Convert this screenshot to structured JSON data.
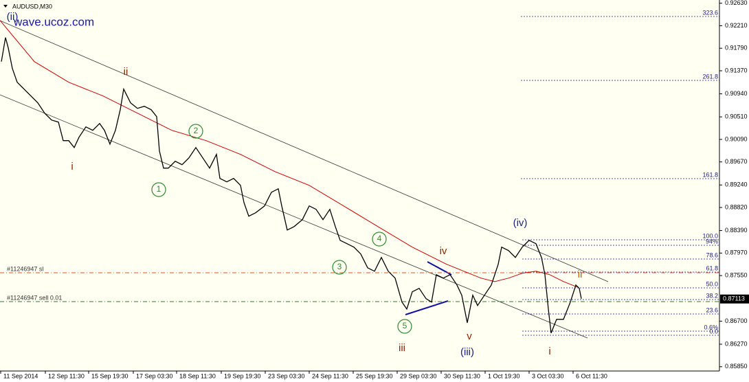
{
  "chart_data": {
    "type": "line",
    "title": "AUDUSD,M30",
    "watermark": "wave.ucoz.com",
    "x": [
      1,
      4,
      6,
      9,
      12.5,
      17.5,
      22.5,
      27.5,
      32.5,
      37.5,
      42.5,
      46,
      50,
      54,
      57.5,
      62.5,
      67.5,
      72.5,
      76,
      80,
      84,
      87.5,
      90,
      95,
      100,
      105,
      110,
      114,
      116,
      119,
      122.5,
      127.5,
      132.5,
      137.5,
      142.5,
      147.5,
      152.5,
      157.5,
      160,
      165,
      170,
      175,
      177.5,
      181,
      186,
      192.5,
      197.5,
      202.5,
      205,
      209,
      214,
      220,
      225,
      230,
      235,
      240,
      244,
      247.5,
      252.5,
      257.5,
      262.5,
      267.5,
      272.5,
      277.5,
      282.5,
      287.5,
      292.5,
      296,
      300,
      305,
      310,
      314,
      317.5,
      322.5,
      327.5,
      332.5,
      336,
      340,
      344,
      347.5,
      352.5,
      357.5,
      362.5,
      365,
      370,
      375,
      380,
      385,
      390,
      394,
      396.5,
      399,
      401,
      405,
      410,
      415,
      419,
      421.5,
      423
    ],
    "series": [
      {
        "name": "AUDUSD",
        "color": "#000000",
        "values": [
          0.9154,
          0.91989,
          0.91797,
          0.91412,
          0.91156,
          0.91028,
          0.909,
          0.90771,
          0.90579,
          0.90451,
          0.90413,
          0.90067,
          0.90067,
          0.89938,
          0.90131,
          0.90323,
          0.90259,
          0.90387,
          0.90259,
          0.90002,
          0.90259,
          0.90643,
          0.91028,
          0.90771,
          0.90669,
          0.90707,
          0.90643,
          0.90515,
          0.89874,
          0.89554,
          0.89554,
          0.89682,
          0.89618,
          0.89746,
          0.89938,
          0.89746,
          0.89554,
          0.8981,
          0.89362,
          0.89298,
          0.89362,
          0.89233,
          0.88913,
          0.88657,
          0.88721,
          0.88849,
          0.89105,
          0.89169,
          0.88849,
          0.884,
          0.88464,
          0.88593,
          0.88849,
          0.88785,
          0.88593,
          0.88785,
          0.88464,
          0.88208,
          0.88144,
          0.8808,
          0.87952,
          0.87695,
          0.87631,
          0.87888,
          0.87631,
          0.87503,
          0.87055,
          0.86926,
          0.87247,
          0.87311,
          0.87119,
          0.87055,
          0.87567,
          0.87503,
          0.87567,
          0.87375,
          0.87183,
          0.8667,
          0.87183,
          0.86991,
          0.87183,
          0.87375,
          0.8776,
          0.8808,
          0.88016,
          0.87888,
          0.8808,
          0.88208,
          0.88144,
          0.87888,
          0.87567,
          0.86926,
          0.86478,
          0.86734,
          0.86734,
          0.87055,
          0.87375,
          0.87311,
          0.87119
        ]
      }
    ],
    "ma": {
      "color": "#cc0000",
      "x": [
        0,
        25,
        50,
        75,
        100,
        125,
        150,
        175,
        200,
        225,
        250,
        275,
        300,
        325,
        350,
        360,
        370,
        380,
        390,
        400,
        410,
        420
      ],
      "values": [
        0.9231,
        0.9154,
        0.91156,
        0.909,
        0.90579,
        0.90259,
        0.90067,
        0.8981,
        0.8949,
        0.89233,
        0.88849,
        0.88464,
        0.8808,
        0.8776,
        0.87503,
        0.87439,
        0.87503,
        0.87593,
        0.87631,
        0.87567,
        0.87439,
        0.87336
      ]
    },
    "xlim": [
      0,
      523.5
    ],
    "ylim": [
      0.8577,
      0.9269
    ],
    "xticks": [
      {
        "value": 0.5,
        "label": "11 Sep 2014"
      },
      {
        "value": 33,
        "label": "12 Sep 11:30"
      },
      {
        "value": 64.5,
        "label": "15 Sep 19:30"
      },
      {
        "value": 97,
        "label": "17 Sep 03:30"
      },
      {
        "value": 128.5,
        "label": "18 Sep 11:30"
      },
      {
        "value": 161,
        "label": "19 Sep 19:30"
      },
      {
        "value": 193,
        "label": "23 Sep 03:30"
      },
      {
        "value": 225,
        "label": "24 Sep 11:30"
      },
      {
        "value": 257,
        "label": "25 Sep 19:30"
      },
      {
        "value": 289,
        "label": "29 Sep 03:30"
      },
      {
        "value": 321,
        "label": "30 Sep 11:30"
      },
      {
        "value": 353,
        "label": "1 Oct 19:30"
      },
      {
        "value": 385,
        "label": "3 Oct 03:30"
      },
      {
        "value": 417,
        "label": "6 Oct 11:30"
      }
    ],
    "yticks": [
      {
        "value": 0.9263,
        "label": "0.92630"
      },
      {
        "value": 0.9221,
        "label": "0.92210"
      },
      {
        "value": 0.9179,
        "label": "0.91790"
      },
      {
        "value": 0.9137,
        "label": "0.91370"
      },
      {
        "value": 0.9094,
        "label": "0.90940"
      },
      {
        "value": 0.9051,
        "label": "0.90510"
      },
      {
        "value": 0.9009,
        "label": "0.90090"
      },
      {
        "value": 0.8967,
        "label": "0.89670"
      },
      {
        "value": 0.8924,
        "label": "0.89240"
      },
      {
        "value": 0.8882,
        "label": "0.88820"
      },
      {
        "value": 0.8839,
        "label": "0.88390"
      },
      {
        "value": 0.8797,
        "label": "0.87970"
      },
      {
        "value": 0.8755,
        "label": "0.87550"
      },
      {
        "value": 0.867,
        "label": "0.86700"
      },
      {
        "value": 0.8627,
        "label": "0.86270"
      },
      {
        "value": 0.8585,
        "label": "0.85850"
      }
    ],
    "last_price": 0.87113,
    "orders": [
      "#11246947 sl",
      "#11246947 sell 0.01"
    ],
    "fib_labels": [
      "323.6",
      "261.8",
      "161.8",
      "100.0",
      "94%",
      "78.6",
      "61.8",
      "50.0",
      "38.2",
      "23.6",
      "0.6%",
      "0.0"
    ],
    "wave_labels": [
      {
        "text": "(ii)",
        "color": "#1a237e"
      },
      {
        "text": "ii",
        "color": "#8b2500"
      },
      {
        "text": "i",
        "color": "#8b2500"
      },
      {
        "text": "1",
        "color": "#2e8b2e"
      },
      {
        "text": "2",
        "color": "#2e8b2e"
      },
      {
        "text": "3",
        "color": "#2e8b2e"
      },
      {
        "text": "4",
        "color": "#2e8b2e"
      },
      {
        "text": "5",
        "color": "#2e8b2e"
      },
      {
        "text": "iii",
        "color": "#8b2500"
      },
      {
        "text": "iv",
        "color": "#8b2500"
      },
      {
        "text": "v",
        "color": "#8b2500"
      },
      {
        "text": "(iii)",
        "color": "#1a237e"
      },
      {
        "text": "(iv)",
        "color": "#1a237e"
      },
      {
        "text": "i",
        "color": "#8b2500"
      },
      {
        "text": "ii",
        "color": "#c06000"
      }
    ]
  }
}
